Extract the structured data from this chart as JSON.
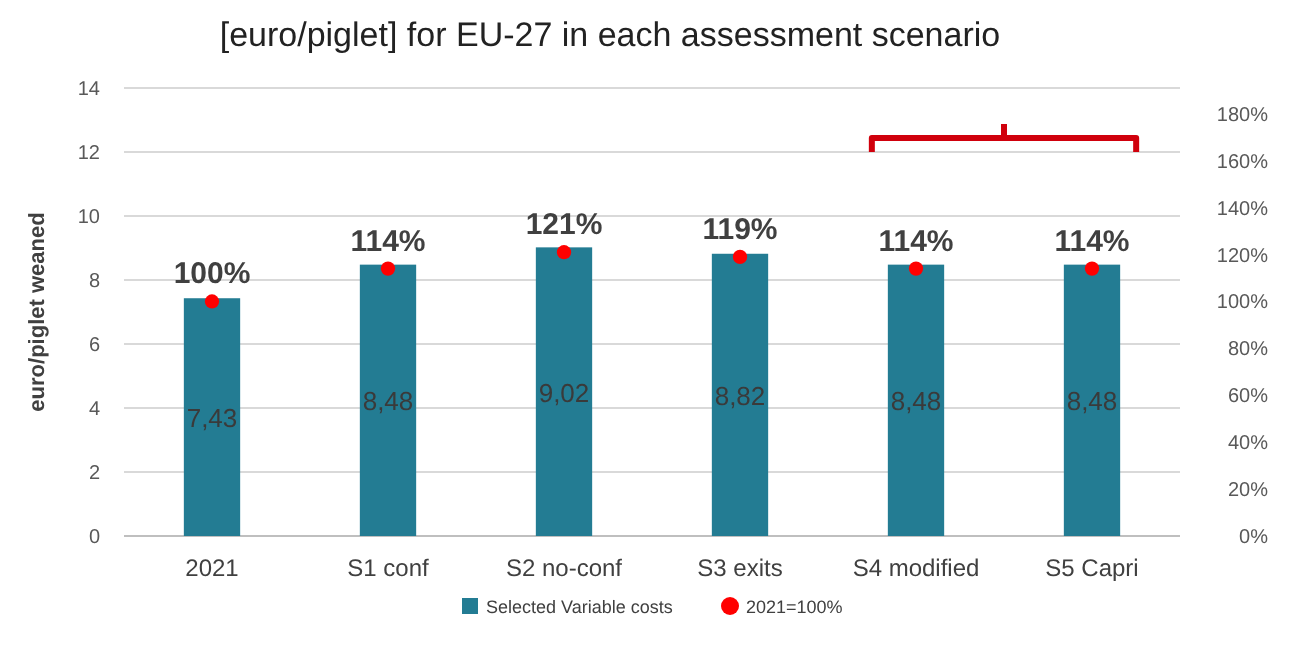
{
  "chart_data": {
    "type": "bar",
    "title": "[euro/piglet] for EU-27 in each assessment scenario",
    "ylabel": "euro/piglet weaned",
    "categories": [
      "2021",
      "S1 conf",
      "S2 no-conf",
      "S3 exits",
      "S4 modified",
      "S5 Capri"
    ],
    "series": [
      {
        "name": "Selected Variable costs",
        "color": "#237c93",
        "values": [
          7.43,
          8.48,
          9.02,
          8.82,
          8.48,
          8.48
        ],
        "value_labels": [
          "7,43",
          "8,48",
          "9,02",
          "8,82",
          "8,48",
          "8,48"
        ]
      },
      {
        "name": "2021=100%",
        "type": "scatter",
        "axis": "y2",
        "color": "#ff0000",
        "values": [
          100,
          114,
          121,
          119,
          114,
          114
        ],
        "value_labels": [
          "100%",
          "114%",
          "121%",
          "119%",
          "114%",
          "114%"
        ]
      }
    ],
    "marker": "circle",
    "ylim": [
      0,
      14
    ],
    "yticks": [
      0,
      2,
      4,
      6,
      8,
      10,
      12,
      14
    ],
    "y2lim": [
      0,
      191
    ],
    "y2ticks": [
      {
        "value": 0,
        "label": "0%"
      },
      {
        "value": 20,
        "label": "20%"
      },
      {
        "value": 40,
        "label": "40%"
      },
      {
        "value": 60,
        "label": "60%"
      },
      {
        "value": 80,
        "label": "80%"
      },
      {
        "value": 100,
        "label": "100%"
      },
      {
        "value": 120,
        "label": "120%"
      },
      {
        "value": 140,
        "label": "140%"
      },
      {
        "value": 160,
        "label": "160%"
      },
      {
        "value": 180,
        "label": "180%"
      }
    ],
    "grid": "y",
    "legend": "bottom"
  }
}
